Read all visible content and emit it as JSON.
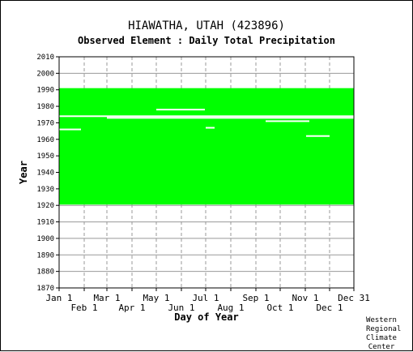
{
  "header": {
    "title": "HIAWATHA, UTAH   (423896)",
    "subtitle": "Observed Element : Daily Total Precipitation"
  },
  "credit": [
    "Western",
    "Regional",
    "Climate",
    "Center"
  ],
  "chart_data": {
    "type": "heatmap",
    "xlabel": "Day of Year",
    "ylabel": "Year",
    "ylim": [
      1870,
      2010
    ],
    "y_ticks": [
      2010,
      2000,
      1990,
      1980,
      1970,
      1960,
      1950,
      1940,
      1930,
      1920,
      1910,
      1900,
      1890,
      1880,
      1870
    ],
    "x_ticks_top": [
      "Jan 1",
      "Mar 1",
      "May 1",
      "Jul 1",
      "Sep 1",
      "Nov 1",
      "Dec 31"
    ],
    "x_ticks_bottom": [
      "Feb 1",
      "Apr 1",
      "Jun 1",
      "Aug 1",
      "Oct 1",
      "Dec 1"
    ],
    "grid": true,
    "data_color": "#00ff00",
    "data_coverage": {
      "start_year": 1920.5,
      "end_year": 1991,
      "first_day": 1,
      "last_day": 365
    },
    "missing_gaps": [
      {
        "year": 1974,
        "day_start": 1,
        "day_end": 365
      },
      {
        "year": 1973,
        "day_start": 60,
        "day_end": 365
      },
      {
        "year": 1966,
        "day_start": 1,
        "day_end": 28
      },
      {
        "year": 1978,
        "day_start": 121,
        "day_end": 181
      },
      {
        "year": 1971,
        "day_start": 256,
        "day_end": 310
      },
      {
        "year": 1962,
        "day_start": 306,
        "day_end": 335
      },
      {
        "year": 1967,
        "day_start": 182,
        "day_end": 193
      }
    ]
  }
}
